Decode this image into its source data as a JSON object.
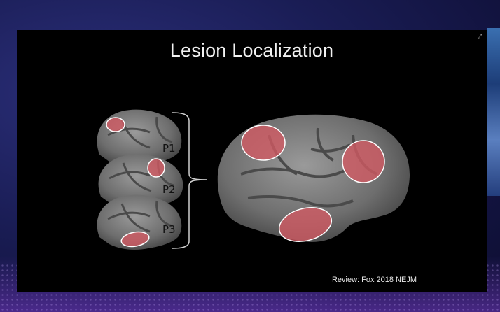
{
  "slide": {
    "title": "Lesion Localization",
    "patients": [
      {
        "label": "P1"
      },
      {
        "label": "P2"
      },
      {
        "label": "P3"
      }
    ],
    "credit": "Review: Fox 2018 NEJM"
  },
  "colors": {
    "lesion": "#d45a63",
    "background": "#1a1d55",
    "slide": "#000000"
  },
  "icons": {
    "expand": "expand-icon"
  }
}
